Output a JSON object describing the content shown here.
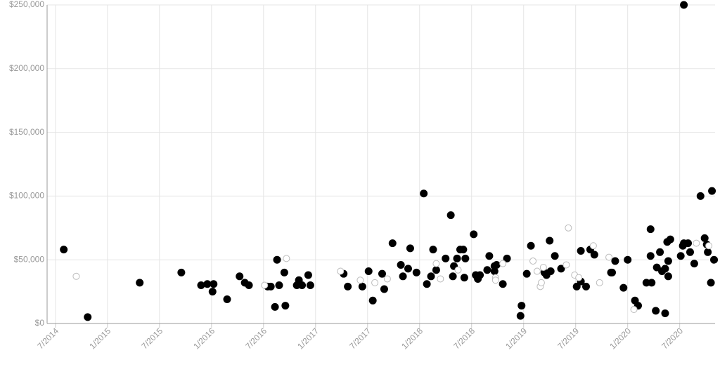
{
  "chart_data": {
    "type": "scatter",
    "xlim": [
      2014.42,
      2020.84
    ],
    "ylim": [
      0,
      250000
    ],
    "xticks": [
      {
        "value": 2014.5,
        "label": "7/2014"
      },
      {
        "value": 2015,
        "label": "1/2015"
      },
      {
        "value": 2015.5,
        "label": "7/2015"
      },
      {
        "value": 2016,
        "label": "1/2016"
      },
      {
        "value": 2016.5,
        "label": "7/2016"
      },
      {
        "value": 2017,
        "label": "1/2017"
      },
      {
        "value": 2017.5,
        "label": "7/2017"
      },
      {
        "value": 2018,
        "label": "1/2018"
      },
      {
        "value": 2018.5,
        "label": "7/2018"
      },
      {
        "value": 2019,
        "label": "1/2019"
      },
      {
        "value": 2019.5,
        "label": "7/2019"
      },
      {
        "value": 2020,
        "label": "1/2020"
      },
      {
        "value": 2020.5,
        "label": "7/2020"
      }
    ],
    "yticks": [
      {
        "value": 0,
        "label": "$0"
      },
      {
        "value": 50000,
        "label": "$50,000"
      },
      {
        "value": 100000,
        "label": "$100,000"
      },
      {
        "value": 150000,
        "label": "$150,000"
      },
      {
        "value": 200000,
        "label": "$200,000"
      },
      {
        "value": 250000,
        "label": "$250,000"
      }
    ],
    "grid": true,
    "series": [
      {
        "color": "#000000",
        "marker": "filled",
        "x": [
          2014.58,
          2014.81,
          2015.31,
          2015.71,
          2015.9,
          2015.96,
          2016.02,
          2016.01,
          2016.15,
          2016.27,
          2016.32,
          2016.36,
          2016.54,
          2016.57,
          2016.61,
          2016.63,
          2016.65,
          2016.7,
          2016.71,
          2016.82,
          2016.84,
          2016.87,
          2016.93,
          2016.95,
          2017.27,
          2017.31,
          2017.45,
          2017.51,
          2017.55,
          2017.64,
          2017.66,
          2017.74,
          2017.82,
          2017.84,
          2017.89,
          2017.91,
          2017.97,
          2018.04,
          2018.07,
          2018.11,
          2018.13,
          2018.16,
          2018.25,
          2018.3,
          2018.32,
          2018.33,
          2018.36,
          2018.39,
          2018.42,
          2018.43,
          2018.44,
          2018.52,
          2018.54,
          2018.56,
          2018.58,
          2018.65,
          2018.67,
          2018.72,
          2018.72,
          2018.74,
          2018.8,
          2018.84,
          2018.97,
          2018.98,
          2019.03,
          2019.07,
          2019.2,
          2019.22,
          2019.25,
          2019.26,
          2019.3,
          2019.36,
          2019.51,
          2019.55,
          2019.55,
          2019.6,
          2019.64,
          2019.68,
          2019.84,
          2019.85,
          2019.88,
          2019.96,
          2020.0,
          2020.07,
          2020.1,
          2020.18,
          2020.22,
          2020.22,
          2020.23,
          2020.28,
          2020.27,
          2020.31,
          2020.33,
          2020.36,
          2020.36,
          2020.38,
          2020.39,
          2020.39,
          2020.41,
          2020.51,
          2020.53,
          2020.54,
          2020.54,
          2020.58,
          2020.6,
          2020.64,
          2020.7,
          2020.74,
          2020.76,
          2020.77,
          2020.8,
          2020.81,
          2020.83
        ],
        "values": [
          58000,
          5000,
          32000,
          40000,
          30000,
          31000,
          31000,
          25000,
          19000,
          37000,
          32000,
          30000,
          29000,
          29000,
          13000,
          50000,
          30000,
          40000,
          14000,
          30000,
          34000,
          30000,
          38000,
          30000,
          39000,
          29000,
          29000,
          41000,
          18000,
          39000,
          27000,
          63000,
          46000,
          37000,
          43000,
          59000,
          40000,
          102000,
          31000,
          37000,
          58000,
          42000,
          51000,
          85000,
          37000,
          45000,
          51000,
          58000,
          58000,
          36000,
          51000,
          70000,
          38000,
          35000,
          38000,
          42000,
          53000,
          45000,
          41000,
          46000,
          31000,
          51000,
          6000,
          14000,
          39000,
          61000,
          40000,
          38000,
          65000,
          41000,
          53000,
          43000,
          29000,
          33000,
          57000,
          29000,
          58000,
          54000,
          40000,
          40000,
          49000,
          28000,
          50000,
          18000,
          14000,
          32000,
          74000,
          53000,
          32000,
          44000,
          10000,
          56000,
          41000,
          43000,
          8000,
          64000,
          49000,
          37000,
          66000,
          53000,
          61000,
          250000,
          63000,
          63000,
          56000,
          47000,
          100000,
          67000,
          62000,
          56000,
          32000,
          104000,
          50000
        ]
      },
      {
        "color": "#bbbbbb",
        "marker": "hollow",
        "x": [
          2014.7,
          2016.51,
          2016.72,
          2017.24,
          2017.43,
          2017.57,
          2017.69,
          2018.16,
          2018.2,
          2018.37,
          2018.73,
          2018.73,
          2018.8,
          2019.09,
          2019.13,
          2019.16,
          2019.17,
          2019.19,
          2019.41,
          2019.43,
          2019.49,
          2019.53,
          2019.67,
          2019.73,
          2019.82,
          2020.06,
          2020.66,
          2020.78
        ],
        "values": [
          37000,
          30000,
          51000,
          41000,
          34000,
          32000,
          35000,
          47000,
          35000,
          42000,
          36000,
          34000,
          47000,
          49000,
          41000,
          29000,
          32000,
          44000,
          46000,
          75000,
          38000,
          36000,
          61000,
          32000,
          52000,
          11000,
          63000,
          61000
        ]
      }
    ]
  }
}
